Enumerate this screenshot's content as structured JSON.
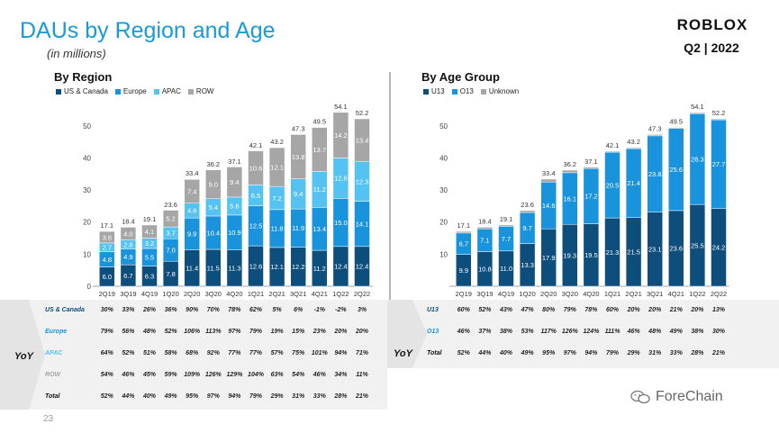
{
  "title": "DAUs by Region and Age",
  "subtitle": "(in millions)",
  "logo_text": "ROBLOX",
  "quarter": "Q2 | 2022",
  "page_number": "23",
  "watermark": "ForeChain",
  "colors": {
    "title": "#1a9ad6",
    "dark_blue": "#0d4e7c",
    "blue": "#1a93dd",
    "light_blue": "#54c3f1",
    "gray": "#a6a6a6",
    "axis": "#888888",
    "percent_blue": "#1a93dd",
    "percent_light_blue": "#54c3f1"
  },
  "chart_data": [
    {
      "type": "bar",
      "stacked": true,
      "title": "By Region",
      "categories": [
        "2Q19",
        "3Q19",
        "4Q19",
        "1Q20",
        "2Q20",
        "3Q20",
        "4Q20",
        "1Q21",
        "2Q21",
        "3Q21",
        "4Q21",
        "1Q22",
        "2Q22"
      ],
      "ylim": [
        0,
        55
      ],
      "yticks": [
        "0",
        "10",
        "20",
        "30",
        "40",
        "50"
      ],
      "grid": false,
      "legend_position": "top-left",
      "series": [
        {
          "name": "US & Canada",
          "color": "#0d4e7c",
          "values": [
            6.0,
            6.7,
            6.3,
            7.8,
            11.4,
            11.5,
            11.3,
            12.6,
            12.1,
            12.2,
            11.2,
            12.4,
            12.4
          ],
          "labels": [
            "6.0",
            "6.7",
            "6.3",
            "7.8",
            "11.4",
            "11.5",
            "11.3",
            "12.6",
            "12.1",
            "12.2",
            "11.2",
            "12.4",
            "12.4"
          ]
        },
        {
          "name": "Europe",
          "color": "#1a93dd",
          "values": [
            4.8,
            4.9,
            5.5,
            7.0,
            9.9,
            10.4,
            10.9,
            12.5,
            11.8,
            11.9,
            13.4,
            15.0,
            14.1
          ],
          "labels": [
            "4.8",
            "4.9",
            "5.5",
            "7.0",
            "9.9",
            "10.4",
            "10.9",
            "12.5",
            "11.8",
            "11.9",
            "13.4",
            "15.0",
            "14.1"
          ]
        },
        {
          "name": "APAC",
          "color": "#54c3f1",
          "values": [
            2.7,
            2.8,
            3.2,
            3.7,
            4.6,
            5.4,
            5.6,
            6.5,
            7.2,
            9.4,
            11.2,
            12.6,
            12.3
          ],
          "labels": [
            "2.7",
            "2.8",
            "3.2",
            "3.7",
            "4.6",
            "5.4",
            "5.6",
            "6.5",
            "7.2",
            "9.4",
            "11.2",
            "12.6",
            "12.3"
          ]
        },
        {
          "name": "ROW",
          "color": "#a6a6a6",
          "values": [
            3.6,
            4.0,
            4.1,
            5.2,
            7.4,
            9.0,
            9.4,
            10.6,
            12.1,
            13.8,
            13.7,
            14.2,
            13.4
          ],
          "labels": [
            "3.6",
            "4.0",
            "4.1",
            "5.2",
            "7.4",
            "9.0",
            "9.4",
            "10.6",
            "12.1",
            "13.8",
            "13.7",
            "14.2",
            "13.4"
          ]
        }
      ],
      "totals": [
        17.1,
        18.4,
        19.1,
        23.6,
        33.4,
        36.2,
        37.1,
        42.1,
        43.2,
        47.3,
        49.5,
        54.1,
        52.2
      ],
      "total_labels": [
        "17.1",
        "18.4",
        "19.1",
        "23.6",
        "33.4",
        "36.2",
        "37.1",
        "42.1",
        "43.2",
        "47.3",
        "49.5",
        "54.1",
        "52.2"
      ]
    },
    {
      "type": "bar",
      "stacked": true,
      "title": "By Age Group",
      "categories": [
        "2Q19",
        "3Q19",
        "4Q19",
        "1Q20",
        "2Q20",
        "3Q20",
        "4Q20",
        "1Q21",
        "2Q21",
        "3Q21",
        "4Q21",
        "1Q22",
        "2Q22"
      ],
      "ylim": [
        0,
        55
      ],
      "yticks": [
        "10",
        "20",
        "30",
        "40",
        "50"
      ],
      "grid": false,
      "legend_position": "top-left",
      "series": [
        {
          "name": "U13",
          "color": "#0d4e7c",
          "values": [
            9.9,
            10.8,
            11.0,
            13.3,
            17.9,
            19.3,
            19.5,
            21.3,
            21.5,
            23.1,
            23.6,
            25.5,
            24.2
          ],
          "labels": [
            "9.9",
            "10.8",
            "11.0",
            "13.3",
            "17.9",
            "19.3",
            "19.5",
            "21.3",
            "21.5",
            "23.1",
            "23.6",
            "25.5",
            "24.2"
          ]
        },
        {
          "name": "O13",
          "color": "#1a93dd",
          "values": [
            6.7,
            7.1,
            7.7,
            9.7,
            14.6,
            16.1,
            17.2,
            20.5,
            21.4,
            23.8,
            25.6,
            28.3,
            27.7
          ],
          "labels": [
            "6.7",
            "7.1",
            "7.7",
            "9.7",
            "14.6",
            "16.1",
            "17.2",
            "20.5",
            "21.4",
            "23.8",
            "25.6",
            "28.3",
            "27.7"
          ]
        },
        {
          "name": "Unknown",
          "color": "#a6a6a6",
          "values": [
            0.5,
            0.5,
            0.4,
            0.6,
            0.9,
            0.8,
            0.4,
            0.3,
            0.3,
            0.4,
            0.3,
            0.3,
            0.3
          ],
          "labels": []
        }
      ],
      "totals": [
        17.1,
        18.4,
        19.1,
        23.6,
        33.4,
        36.2,
        37.1,
        42.1,
        43.2,
        47.3,
        49.5,
        54.1,
        52.2
      ],
      "total_labels": [
        "17.1",
        "18.4",
        "19.1",
        "23.6",
        "33.4",
        "36.2",
        "37.1",
        "42.1",
        "43.2",
        "47.3",
        "49.5",
        "54.1",
        "52.2"
      ]
    },
    {
      "type": "table",
      "title": "YoY",
      "rows": [
        {
          "label": "US & Canada",
          "color": "#0d4e7c",
          "values": [
            "30%",
            "33%",
            "26%",
            "36%",
            "90%",
            "70%",
            "78%",
            "62%",
            "5%",
            "6%",
            "-1%",
            "-2%",
            "3%"
          ]
        },
        {
          "label": "Europe",
          "color": "#1a93dd",
          "values": [
            "79%",
            "56%",
            "48%",
            "52%",
            "106%",
            "113%",
            "97%",
            "79%",
            "19%",
            "15%",
            "23%",
            "20%",
            "20%"
          ]
        },
        {
          "label": "APAC",
          "color": "#54c3f1",
          "values": [
            "64%",
            "52%",
            "51%",
            "58%",
            "68%",
            "92%",
            "77%",
            "77%",
            "57%",
            "75%",
            "101%",
            "94%",
            "71%"
          ]
        },
        {
          "label": "ROW",
          "color": "#a6a6a6",
          "values": [
            "54%",
            "46%",
            "45%",
            "59%",
            "109%",
            "126%",
            "129%",
            "104%",
            "63%",
            "54%",
            "46%",
            "34%",
            "11%"
          ]
        },
        {
          "label": "Total",
          "color": "#111111",
          "values": [
            "52%",
            "44%",
            "40%",
            "49%",
            "95%",
            "97%",
            "94%",
            "79%",
            "29%",
            "31%",
            "33%",
            "28%",
            "21%"
          ]
        }
      ]
    },
    {
      "type": "table",
      "title": "YoY",
      "rows": [
        {
          "label": "U13",
          "color": "#0d4e7c",
          "values": [
            "60%",
            "52%",
            "43%",
            "47%",
            "80%",
            "79%",
            "78%",
            "60%",
            "20%",
            "20%",
            "21%",
            "20%",
            "13%"
          ]
        },
        {
          "label": "O13",
          "color": "#1a93dd",
          "values": [
            "46%",
            "37%",
            "38%",
            "53%",
            "117%",
            "126%",
            "124%",
            "111%",
            "46%",
            "48%",
            "49%",
            "38%",
            "30%"
          ]
        },
        {
          "label": "Total",
          "color": "#111111",
          "values": [
            "52%",
            "44%",
            "40%",
            "49%",
            "95%",
            "97%",
            "94%",
            "79%",
            "29%",
            "31%",
            "33%",
            "28%",
            "21%"
          ]
        }
      ]
    }
  ]
}
